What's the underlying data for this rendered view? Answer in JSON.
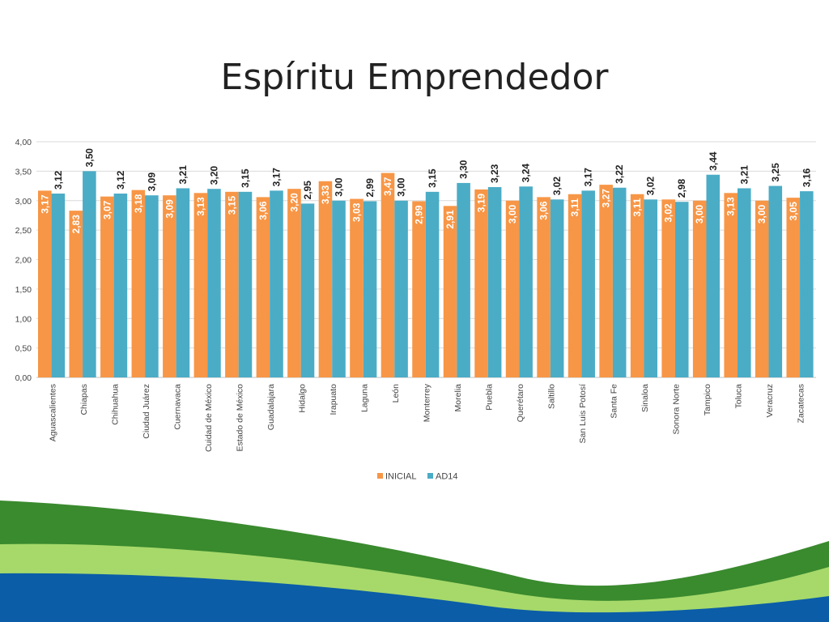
{
  "slide": {
    "title": "Espíritu Emprendedor"
  },
  "colors": {
    "inicial": "#F79646",
    "ad14": "#4BACC6",
    "label_dark": "#222222",
    "label_light": "#ffffff",
    "wave_dark_green": "#3A8A2E",
    "wave_light_green": "#A6D96A",
    "wave_blue": "#0B5DA8"
  },
  "chart_data": {
    "type": "bar",
    "title": "",
    "xlabel": "",
    "ylabel": "",
    "ylim": [
      0,
      4
    ],
    "yticks": [
      "0,00",
      "0,50",
      "1,00",
      "1,50",
      "2,00",
      "2,50",
      "3,00",
      "3,50",
      "4,00"
    ],
    "grid": true,
    "legend_position": "bottom",
    "categories": [
      "Aguascalientes",
      "Chiapas",
      "Chihuahua",
      "Ciudad Juárez",
      "Cuernavaca",
      "Cuidad de México",
      "Estado de México",
      "Guadalajara",
      "Hidalgo",
      "Irapuato",
      "Laguna",
      "León",
      "Monterrey",
      "Morelia",
      "Puebla",
      "Querétaro",
      "Saltillo",
      "San Luis Potosí",
      "Santa Fe",
      "Sinaloa",
      "Sonora Norte",
      "Tampico",
      "Toluca",
      "Veracruz",
      "Zacatecas"
    ],
    "series": [
      {
        "name": "INICIAL",
        "values": [
          3.17,
          2.83,
          3.07,
          3.18,
          3.09,
          3.13,
          3.15,
          3.06,
          3.2,
          3.33,
          3.03,
          3.47,
          2.99,
          2.91,
          3.19,
          3.0,
          3.06,
          3.11,
          3.27,
          3.11,
          3.02,
          3.0,
          3.13,
          3.0,
          3.05
        ],
        "labels": [
          "3,17",
          "2,83",
          "3,07",
          "3,18",
          "3,09",
          "3,13",
          "3,15",
          "3,06",
          "3,20",
          "3,33",
          "3,03",
          "3,47",
          "2,99",
          "2,91",
          "3,19",
          "3,00",
          "3,06",
          "3,11",
          "3,27",
          "3,11",
          "3,02",
          "3,00",
          "3,13",
          "3,00",
          "3,05"
        ]
      },
      {
        "name": "AD14",
        "values": [
          3.12,
          3.5,
          3.12,
          3.09,
          3.21,
          3.2,
          3.15,
          3.17,
          2.95,
          3.0,
          2.99,
          3.0,
          3.15,
          3.3,
          3.23,
          3.24,
          3.02,
          3.17,
          3.22,
          3.02,
          2.98,
          3.44,
          3.21,
          3.25,
          3.16
        ],
        "labels": [
          "3,12",
          "3,50",
          "3,12",
          "3,09",
          "3,21",
          "3,20",
          "3,15",
          "3,17",
          "2,95",
          "3,00",
          "2,99",
          "3,00",
          "3,15",
          "3,30",
          "3,23",
          "3,24",
          "3,02",
          "3,17",
          "3,22",
          "3,02",
          "2,98",
          "3,44",
          "3,21",
          "3,25",
          "3,16"
        ]
      }
    ]
  }
}
